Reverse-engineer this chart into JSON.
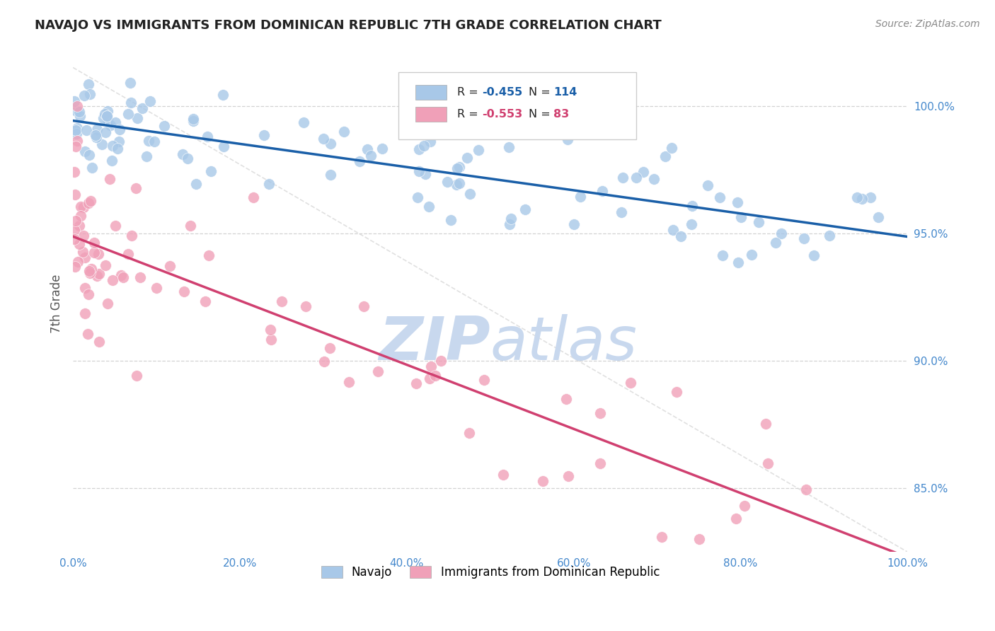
{
  "title": "NAVAJO VS IMMIGRANTS FROM DOMINICAN REPUBLIC 7TH GRADE CORRELATION CHART",
  "source_text": "Source: ZipAtlas.com",
  "ylabel": "7th Grade",
  "x_min": 0.0,
  "x_max": 100.0,
  "y_min": 82.5,
  "y_max": 102.0,
  "yticks": [
    85.0,
    90.0,
    95.0,
    100.0
  ],
  "ytick_labels": [
    "85.0%",
    "90.0%",
    "95.0%",
    "100.0%"
  ],
  "xticks": [
    0.0,
    20.0,
    40.0,
    60.0,
    80.0,
    100.0
  ],
  "xtick_labels": [
    "0.0%",
    "20.0%",
    "40.0%",
    "60.0%",
    "80.0%",
    "100.0%"
  ],
  "navajo_R": -0.455,
  "navajo_N": 114,
  "dr_R": -0.553,
  "dr_N": 83,
  "navajo_color": "#a8c8e8",
  "dr_color": "#f0a0b8",
  "navajo_line_color": "#1a5fa8",
  "dr_line_color": "#d04070",
  "watermark_zip": "ZIP",
  "watermark_atlas": "atlas",
  "watermark_color": "#c8d8ee",
  "bg_color": "#ffffff",
  "grid_color": "#c8c8c8",
  "title_color": "#222222",
  "tick_label_color": "#4488cc",
  "nav_line_y0": 100.2,
  "nav_line_y1": 95.2,
  "dr_line_y0": 94.0,
  "dr_line_y1": 83.0
}
